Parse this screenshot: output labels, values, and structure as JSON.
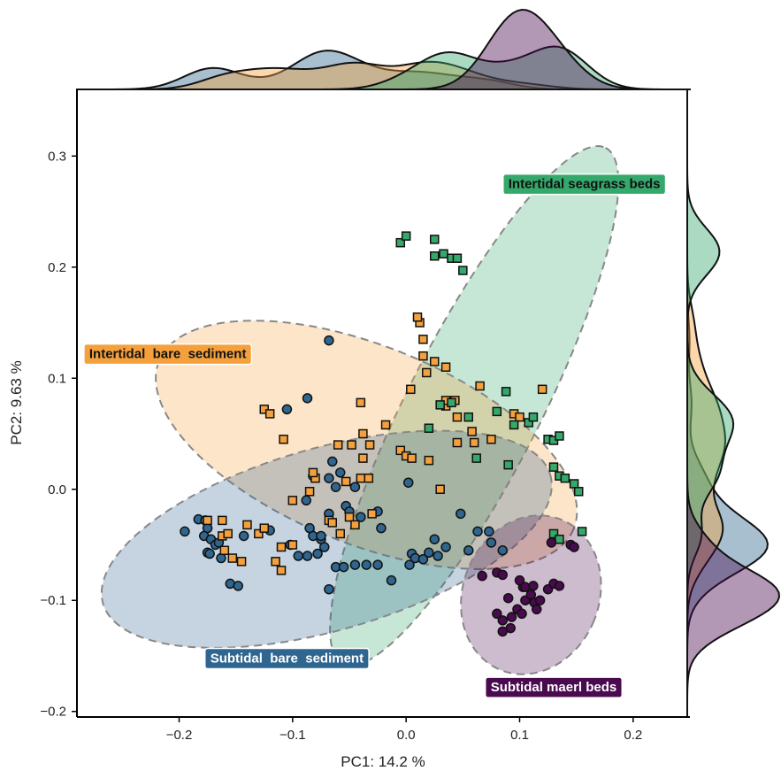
{
  "chart_data": {
    "type": "scatter",
    "xlabel": "PC1: 14.2 %",
    "ylabel": "PC2: 9.63 %",
    "xlim": [
      -0.29,
      0.25
    ],
    "ylim": [
      -0.205,
      0.36
    ],
    "xticks": [
      {
        "value": -0.2,
        "label": "−0.2"
      },
      {
        "value": -0.1,
        "label": "−0.1"
      },
      {
        "value": 0.0,
        "label": "0.0"
      },
      {
        "value": 0.1,
        "label": "0.1"
      },
      {
        "value": 0.2,
        "label": "0.2"
      }
    ],
    "yticks": [
      {
        "value": -0.2,
        "label": "−0.2"
      },
      {
        "value": -0.1,
        "label": "−0.1"
      },
      {
        "value": 0.0,
        "label": "0.0"
      },
      {
        "value": 0.1,
        "label": "0.1"
      },
      {
        "value": 0.2,
        "label": "0.2"
      },
      {
        "value": 0.3,
        "label": "0.3"
      }
    ],
    "grid": false,
    "marginal_density": true,
    "groups": [
      {
        "name": "Subtidal bare sediment",
        "label": "Subtidal  bare  sediment",
        "marker": "circle",
        "color": "#2f6690",
        "fill": "#2f6690",
        "ellipse": {
          "cx": -0.07,
          "cy": -0.045,
          "rx": 0.205,
          "ry": 0.082,
          "angle_deg": -16
        },
        "label_anchor": [
          -0.105,
          -0.152
        ],
        "points": [
          [
            -0.195,
            -0.038
          ],
          [
            -0.183,
            -0.027
          ],
          [
            -0.177,
            -0.028
          ],
          [
            -0.175,
            -0.035
          ],
          [
            -0.178,
            -0.042
          ],
          [
            -0.172,
            -0.045
          ],
          [
            -0.168,
            -0.05
          ],
          [
            -0.165,
            -0.048
          ],
          [
            -0.175,
            -0.057
          ],
          [
            -0.173,
            -0.058
          ],
          [
            -0.163,
            -0.062
          ],
          [
            -0.155,
            -0.085
          ],
          [
            -0.148,
            -0.087
          ],
          [
            -0.143,
            -0.042
          ],
          [
            -0.12,
            -0.037
          ],
          [
            -0.105,
            0.072
          ],
          [
            -0.102,
            -0.05
          ],
          [
            -0.095,
            -0.06
          ],
          [
            -0.085,
            -0.035
          ],
          [
            -0.087,
            0.082
          ],
          [
            -0.075,
            -0.045
          ],
          [
            -0.072,
            -0.052
          ],
          [
            -0.068,
            0.134
          ],
          [
            -0.082,
            0.012
          ],
          [
            -0.088,
            -0.01
          ],
          [
            -0.082,
            -0.042
          ],
          [
            -0.087,
            -0.06
          ],
          [
            -0.078,
            -0.058
          ],
          [
            -0.075,
            -0.042
          ],
          [
            -0.065,
            0.025
          ],
          [
            -0.068,
            0.01
          ],
          [
            -0.068,
            -0.022
          ],
          [
            -0.062,
            0.002
          ],
          [
            -0.058,
            0.015
          ],
          [
            -0.053,
            -0.015
          ],
          [
            -0.05,
            -0.02
          ],
          [
            -0.045,
            0.002
          ],
          [
            -0.04,
            -0.025
          ],
          [
            -0.025,
            -0.02
          ],
          [
            -0.035,
            -0.068
          ],
          [
            -0.022,
            -0.035
          ],
          [
            -0.062,
            -0.07
          ],
          [
            -0.055,
            -0.07
          ],
          [
            -0.045,
            -0.068
          ],
          [
            -0.068,
            -0.09
          ],
          [
            -0.025,
            -0.068
          ],
          [
            -0.013,
            -0.082
          ],
          [
            0.003,
            -0.068
          ],
          [
            0.005,
            -0.058
          ],
          [
            0.008,
            -0.062
          ],
          [
            0.015,
            -0.063
          ],
          [
            0.02,
            -0.057
          ],
          [
            0.025,
            -0.045
          ],
          [
            0.028,
            -0.06
          ],
          [
            0.035,
            -0.052
          ],
          [
            0.048,
            -0.022
          ],
          [
            0.055,
            -0.055
          ],
          [
            0.063,
            -0.038
          ],
          [
            0.073,
            -0.038
          ],
          [
            0.085,
            -0.055
          ],
          [
            0.075,
            -0.048
          ],
          [
            0.002,
            0.006
          ]
        ]
      },
      {
        "name": "Intertidal bare sediment",
        "label": "Intertidal  bare  sediment",
        "marker": "square",
        "color": "#f4a03c",
        "fill": "#f4a03c",
        "ellipse": {
          "cx": -0.035,
          "cy": 0.04,
          "rx": 0.197,
          "ry": 0.089,
          "angle_deg": 22
        },
        "label_anchor": [
          -0.21,
          0.122
        ],
        "points": [
          [
            -0.175,
            -0.028
          ],
          [
            -0.162,
            -0.028
          ],
          [
            -0.162,
            -0.042
          ],
          [
            -0.157,
            -0.04
          ],
          [
            -0.16,
            -0.055
          ],
          [
            -0.153,
            -0.062
          ],
          [
            -0.145,
            -0.065
          ],
          [
            -0.14,
            -0.032
          ],
          [
            -0.13,
            -0.04
          ],
          [
            -0.125,
            -0.035
          ],
          [
            -0.11,
            -0.052
          ],
          [
            -0.115,
            -0.065
          ],
          [
            -0.11,
            -0.073
          ],
          [
            -0.1,
            -0.05
          ],
          [
            -0.1,
            -0.01
          ],
          [
            -0.085,
            -0.002
          ],
          [
            -0.08,
            0.01
          ],
          [
            -0.082,
            0.015
          ],
          [
            -0.068,
            -0.028
          ],
          [
            -0.065,
            -0.03
          ],
          [
            -0.058,
            -0.04
          ],
          [
            -0.05,
            -0.025
          ],
          [
            -0.045,
            -0.032
          ],
          [
            -0.04,
            0.01
          ],
          [
            -0.033,
            0.01
          ],
          [
            -0.053,
            0.007
          ],
          [
            -0.048,
            0.04
          ],
          [
            -0.038,
            0.028
          ],
          [
            -0.038,
            0.05
          ],
          [
            -0.032,
            0.04
          ],
          [
            -0.06,
            0.04
          ],
          [
            -0.04,
            0.078
          ],
          [
            -0.108,
            0.045
          ],
          [
            -0.125,
            0.072
          ],
          [
            -0.12,
            0.068
          ],
          [
            -0.018,
            0.058
          ],
          [
            -0.005,
            0.035
          ],
          [
            0.0,
            0.03
          ],
          [
            0.005,
            0.028
          ],
          [
            0.02,
            0.026
          ],
          [
            0.035,
            0.075
          ],
          [
            0.035,
            0.08
          ],
          [
            0.043,
            0.08
          ],
          [
            0.045,
            0.042
          ],
          [
            0.06,
            0.042
          ],
          [
            0.065,
            0.093
          ],
          [
            0.075,
            0.045
          ],
          [
            0.095,
            0.068
          ],
          [
            0.1,
            0.065
          ],
          [
            0.12,
            0.09
          ],
          [
            0.03,
            0.0
          ],
          [
            -0.03,
            -0.022
          ],
          [
            0.004,
            0.09
          ],
          [
            0.015,
            0.12
          ],
          [
            0.018,
            0.105
          ],
          [
            0.025,
            0.115
          ],
          [
            0.035,
            0.11
          ],
          [
            0.015,
            0.135
          ],
          [
            0.012,
            0.15
          ],
          [
            0.01,
            0.155
          ],
          [
            0.045,
            0.065
          ],
          [
            0.058,
            0.052
          ]
        ]
      },
      {
        "name": "Intertidal seagrass beds",
        "label": "Intertidal seagrass beds",
        "marker": "square",
        "color": "#35a86b",
        "fill": "#35a86b",
        "ellipse": {
          "cx": 0.06,
          "cy": 0.075,
          "rx": 0.255,
          "ry": 0.06,
          "angle_deg": -63
        },
        "label_anchor": [
          0.157,
          0.275
        ],
        "points": [
          [
            -0.005,
            0.222
          ],
          [
            0.0,
            0.228
          ],
          [
            0.025,
            0.225
          ],
          [
            0.025,
            0.21
          ],
          [
            0.033,
            0.212
          ],
          [
            0.04,
            0.208
          ],
          [
            0.045,
            0.208
          ],
          [
            0.05,
            0.197
          ],
          [
            0.03,
            0.076
          ],
          [
            0.04,
            0.078
          ],
          [
            0.055,
            0.065
          ],
          [
            0.062,
            0.028
          ],
          [
            0.08,
            0.07
          ],
          [
            0.088,
            0.088
          ],
          [
            0.095,
            0.058
          ],
          [
            0.108,
            0.06
          ],
          [
            0.112,
            0.065
          ],
          [
            0.125,
            0.045
          ],
          [
            0.13,
            0.044
          ],
          [
            0.135,
            0.048
          ],
          [
            0.13,
            0.02
          ],
          [
            0.135,
            0.012
          ],
          [
            0.14,
            0.01
          ],
          [
            0.148,
            0.005
          ],
          [
            0.152,
            -0.002
          ],
          [
            0.13,
            -0.04
          ],
          [
            0.135,
            -0.045
          ],
          [
            0.155,
            -0.038
          ],
          [
            0.09,
            0.022
          ],
          [
            0.02,
            0.055
          ]
        ]
      },
      {
        "name": "Subtidal maerl beds",
        "label": "Subtidal maerl beds",
        "marker": "circle",
        "color": "#4a0a4e",
        "fill": "#4a0a4e",
        "ellipse": {
          "cx": 0.11,
          "cy": -0.095,
          "rx": 0.06,
          "ry": 0.073,
          "angle_deg": 22
        },
        "label_anchor": [
          0.13,
          -0.178
        ],
        "points": [
          [
            0.067,
            -0.078
          ],
          [
            0.08,
            -0.075
          ],
          [
            0.085,
            -0.077
          ],
          [
            0.08,
            -0.112
          ],
          [
            0.085,
            -0.118
          ],
          [
            0.092,
            -0.125
          ],
          [
            0.093,
            -0.115
          ],
          [
            0.098,
            -0.108
          ],
          [
            0.102,
            -0.112
          ],
          [
            0.105,
            -0.1
          ],
          [
            0.103,
            -0.088
          ],
          [
            0.1,
            -0.082
          ],
          [
            0.105,
            -0.088
          ],
          [
            0.112,
            -0.087
          ],
          [
            0.11,
            -0.095
          ],
          [
            0.113,
            -0.102
          ],
          [
            0.115,
            -0.108
          ],
          [
            0.118,
            -0.1
          ],
          [
            0.125,
            -0.09
          ],
          [
            0.13,
            -0.085
          ],
          [
            0.135,
            -0.087
          ],
          [
            0.128,
            -0.048
          ],
          [
            0.145,
            -0.05
          ],
          [
            0.148,
            -0.052
          ],
          [
            0.085,
            -0.128
          ],
          [
            0.09,
            -0.098
          ]
        ]
      }
    ]
  }
}
